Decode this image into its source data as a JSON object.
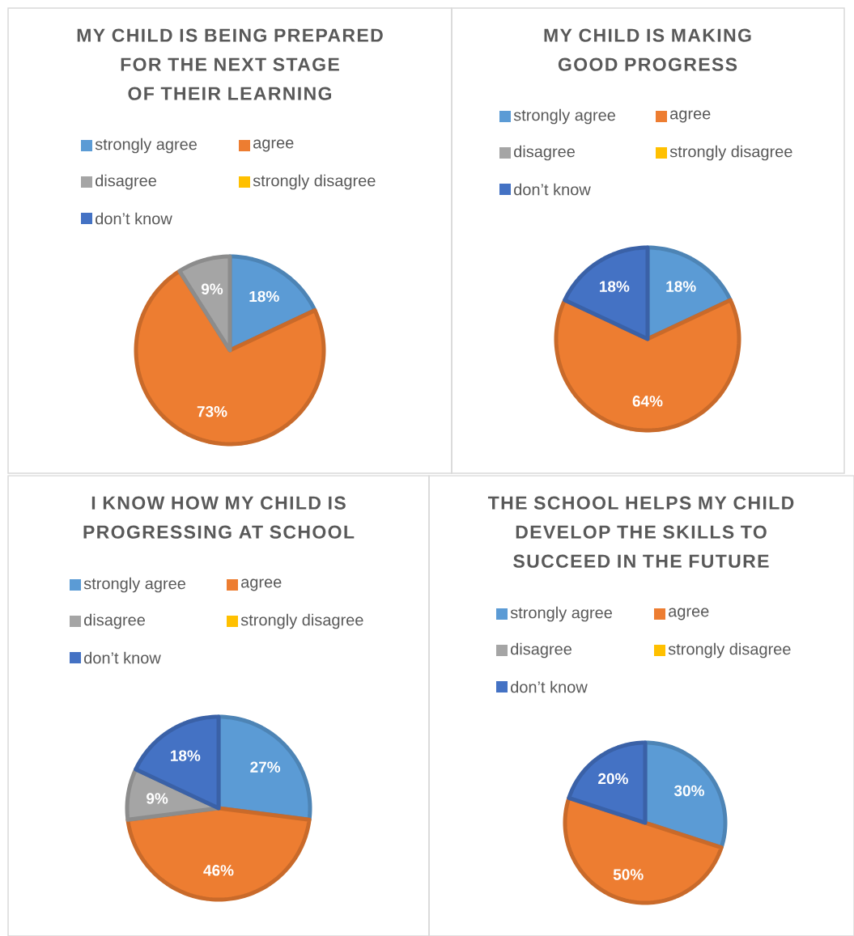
{
  "chart_data": [
    {
      "type": "pie",
      "title": "MY CHILD IS BEING PREPARED FOR THE NEXT STAGE OF THEIR LEARNING",
      "categories": [
        "strongly agree",
        "agree",
        "disagree",
        "strongly disagree",
        "don’t know"
      ],
      "values": [
        18,
        73,
        9,
        0,
        0
      ],
      "colors": [
        "#5b9bd5",
        "#ed7d31",
        "#a5a5a5",
        "#ffc000",
        "#4472c4"
      ],
      "value_labels": [
        "18%",
        "73%",
        "9%",
        null,
        null
      ],
      "legend": "top"
    },
    {
      "type": "pie",
      "title": "MY CHILD IS MAKING GOOD PROGRESS",
      "categories": [
        "strongly agree",
        "agree",
        "disagree",
        "strongly disagree",
        "don’t know"
      ],
      "values": [
        18,
        64,
        0,
        0,
        18
      ],
      "colors": [
        "#5b9bd5",
        "#ed7d31",
        "#a5a5a5",
        "#ffc000",
        "#4472c4"
      ],
      "value_labels": [
        "18%",
        "64%",
        null,
        null,
        "18%"
      ],
      "legend": "top"
    },
    {
      "type": "pie",
      "title": "I KNOW HOW MY CHILD IS PROGRESSING AT SCHOOL",
      "categories": [
        "strongly agree",
        "agree",
        "disagree",
        "strongly disagree",
        "don’t know"
      ],
      "values": [
        27,
        46,
        9,
        0,
        18
      ],
      "colors": [
        "#5b9bd5",
        "#ed7d31",
        "#a5a5a5",
        "#ffc000",
        "#4472c4"
      ],
      "value_labels": [
        "27%",
        "46%",
        "9%",
        null,
        "18%"
      ],
      "legend": "top"
    },
    {
      "type": "pie",
      "title": "THE SCHOOL HELPS MY CHILD DEVELOP THE SKILLS TO SUCCEED IN THE FUTURE",
      "categories": [
        "strongly agree",
        "agree",
        "disagree",
        "strongly disagree",
        "don’t know"
      ],
      "values": [
        30,
        50,
        0,
        0,
        20
      ],
      "colors": [
        "#5b9bd5",
        "#ed7d31",
        "#a5a5a5",
        "#ffc000",
        "#4472c4"
      ],
      "value_labels": [
        "30%",
        "50%",
        null,
        null,
        "20%"
      ],
      "legend": "top"
    }
  ]
}
